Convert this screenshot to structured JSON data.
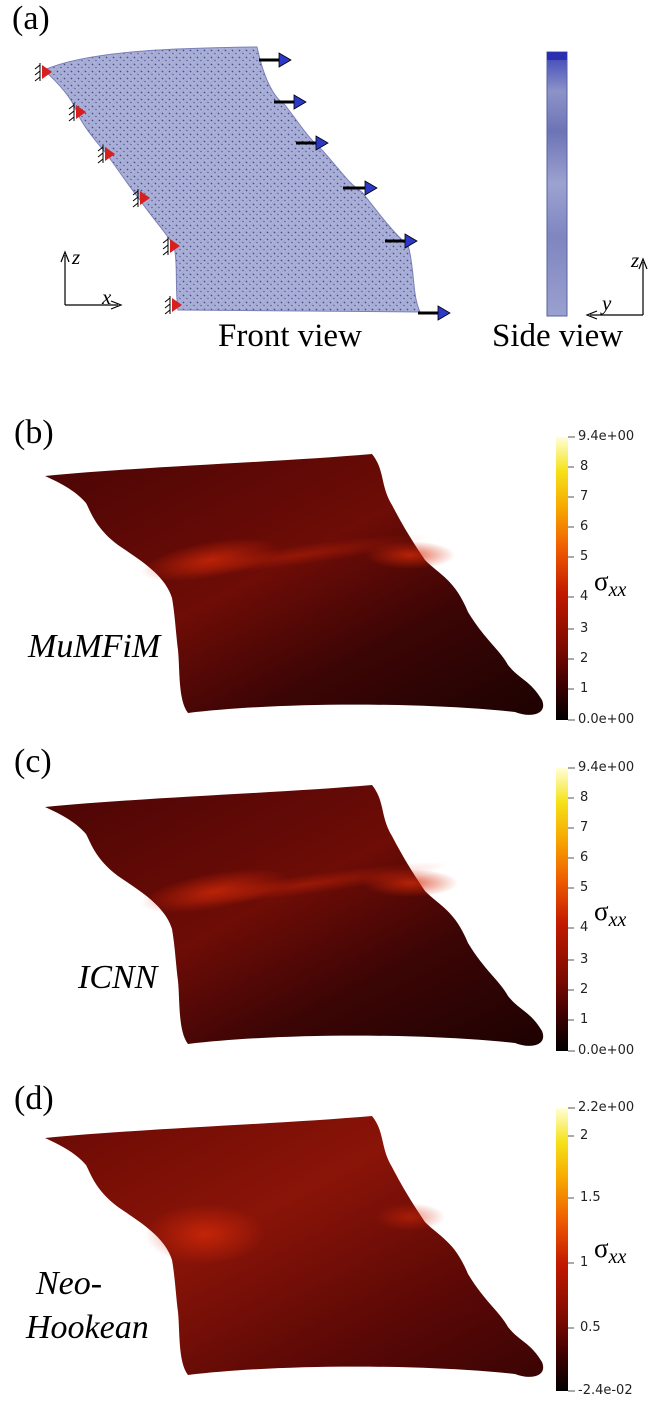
{
  "panel_a": {
    "label": "(a)",
    "front_caption": "Front view",
    "side_caption": "Side view",
    "front_axes": {
      "vertical": "z",
      "horizontal": "x"
    },
    "side_axes": {
      "vertical": "z",
      "horizontal": "y"
    },
    "mesh_color": "#a9aed6"
  },
  "panels": [
    {
      "label": "(b)",
      "model": "MuMFiM",
      "colorbar": {
        "max": "9.4e+00",
        "min": "0.0e+00",
        "ticks": [
          "8",
          "7",
          "6",
          "5",
          "4",
          "3",
          "2",
          "1"
        ],
        "title": "σ",
        "subscript": "xx"
      }
    },
    {
      "label": "(c)",
      "model": "ICNN",
      "colorbar": {
        "max": "9.4e+00",
        "min": "0.0e+00",
        "ticks": [
          "8",
          "7",
          "6",
          "5",
          "4",
          "3",
          "2",
          "1"
        ],
        "title": "σ",
        "subscript": "xx"
      }
    },
    {
      "label": "(d)",
      "model_line1": "Neo-",
      "model_line2": "Hookean",
      "colorbar": {
        "max": "2.2e+00",
        "min": "-2.4e-02",
        "ticks": [
          "2",
          "1.5",
          "1",
          "0.5"
        ],
        "title": "σ",
        "subscript": "xx"
      }
    }
  ],
  "colors": {
    "colormap": [
      "#000000",
      "#3a0000",
      "#7a0a00",
      "#c21a00",
      "#ee5a00",
      "#f7a800",
      "#f5e21a",
      "#ffffd0"
    ],
    "fixed_support": "#d62020",
    "load_arrow_head": "#2c38c8",
    "arrow_shaft": "#000000"
  }
}
